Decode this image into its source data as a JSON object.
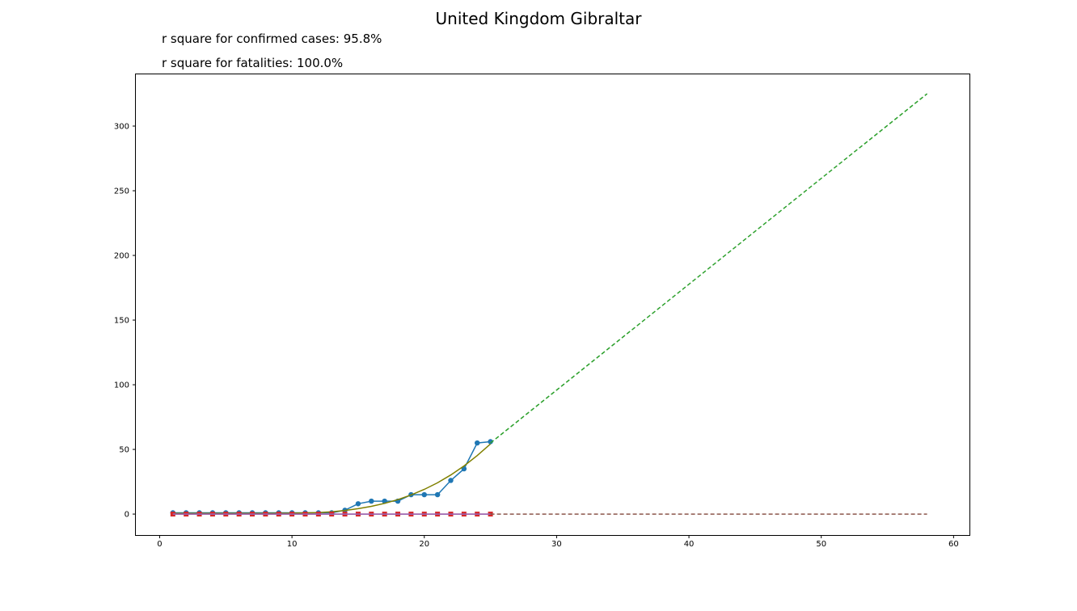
{
  "header": {
    "title": "United Kingdom Gibraltar",
    "rsq_confirmed": "r square for confirmed cases: 95.8%",
    "rsq_fatalities": "r square for fatalities: 100.0%"
  },
  "chart_data": {
    "type": "line",
    "title": "United Kingdom Gibraltar",
    "xlabel": "",
    "ylabel": "",
    "xlim": [
      -1.8,
      61.2
    ],
    "ylim": [
      -16.2,
      340
    ],
    "grid": false,
    "x_ticks": [
      0,
      10,
      20,
      30,
      40,
      50,
      60
    ],
    "y_ticks": [
      0,
      50,
      100,
      150,
      200,
      250,
      300
    ],
    "series": [
      {
        "kind": "observed",
        "color": "#1f77b4",
        "marker": "circle",
        "x": [
          1,
          2,
          3,
          4,
          5,
          6,
          7,
          8,
          9,
          10,
          11,
          12,
          13,
          14,
          15,
          16,
          17,
          18,
          19,
          20,
          21,
          22,
          23,
          24,
          25
        ],
        "y": [
          1,
          1,
          1,
          1,
          1,
          1,
          1,
          1,
          1,
          1,
          1,
          1,
          1,
          3,
          8,
          10,
          10,
          10,
          15,
          15,
          15,
          26,
          35,
          55,
          56
        ]
      },
      {
        "kind": "fit",
        "color": "#808000",
        "style": "solid",
        "x": [
          1,
          2,
          3,
          4,
          5,
          6,
          7,
          8,
          9,
          10,
          11,
          12,
          13,
          14,
          15,
          16,
          17,
          18,
          19,
          20,
          21,
          22,
          23,
          24,
          25
        ],
        "y": [
          0.5,
          0.5,
          0.5,
          0.5,
          0.5,
          0.5,
          0.5,
          0.5,
          0.6,
          0.7,
          0.9,
          1.2,
          1.8,
          2.8,
          4.2,
          6.0,
          8.3,
          11.2,
          14.8,
          19.1,
          24.2,
          30.2,
          37.2,
          45.2,
          54.2
        ]
      },
      {
        "kind": "projection",
        "color": "#2ca02c",
        "style": "dashed",
        "x": [
          25,
          58
        ],
        "y": [
          55,
          325
        ]
      },
      {
        "kind": "observed",
        "color": "#d62728",
        "marker": "square",
        "x": [
          1,
          2,
          3,
          4,
          5,
          6,
          7,
          8,
          9,
          10,
          11,
          12,
          13,
          14,
          15,
          16,
          17,
          18,
          19,
          20,
          21,
          22,
          23,
          24,
          25
        ],
        "y": [
          0,
          0,
          0,
          0,
          0,
          0,
          0,
          0,
          0,
          0,
          0,
          0,
          0,
          0,
          0,
          0,
          0,
          0,
          0,
          0,
          0,
          0,
          0,
          0,
          0
        ]
      },
      {
        "kind": "fit",
        "color": "#9467bd",
        "style": "solid",
        "x": [
          1,
          25
        ],
        "y": [
          0,
          0
        ]
      },
      {
        "kind": "projection",
        "color": "#8c564b",
        "style": "dashed",
        "x": [
          25,
          58
        ],
        "y": [
          0,
          0
        ]
      }
    ]
  }
}
